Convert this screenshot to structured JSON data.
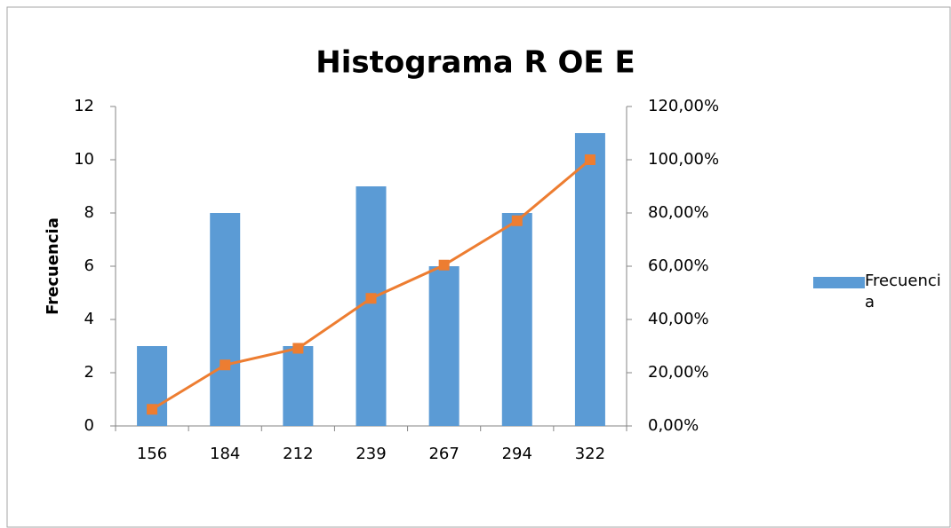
{
  "chart_data": {
    "type": "bar",
    "title": "Histograma R OE E",
    "y_label": "Frecuencia",
    "categories": [
      "156",
      "184",
      "212",
      "239",
      "267",
      "294",
      "322"
    ],
    "series": [
      {
        "name": "Frecuencia",
        "type": "bar",
        "color": "#5b9bd5",
        "values": [
          3,
          8,
          3,
          9,
          6,
          8,
          11
        ]
      },
      {
        "type": "line",
        "axis": "y2",
        "color": "#ed7d31",
        "values": [
          6.25,
          22.92,
          29.17,
          47.92,
          60.42,
          77.08,
          100
        ]
      }
    ],
    "ylim": [
      0,
      12
    ],
    "yticks": [
      0,
      2,
      4,
      6,
      8,
      10,
      12
    ],
    "y2lim": [
      0,
      120
    ],
    "y2ticks": [
      {
        "value": 0,
        "label": "0,00%"
      },
      {
        "value": 20,
        "label": "20,00%"
      },
      {
        "value": 40,
        "label": "40,00%"
      },
      {
        "value": 60,
        "label": "60,00%"
      },
      {
        "value": 80,
        "label": "80,00%"
      },
      {
        "value": 100,
        "label": "100,00%"
      },
      {
        "value": 120,
        "label": "120,00%"
      }
    ],
    "grid": false,
    "legend": "right"
  }
}
